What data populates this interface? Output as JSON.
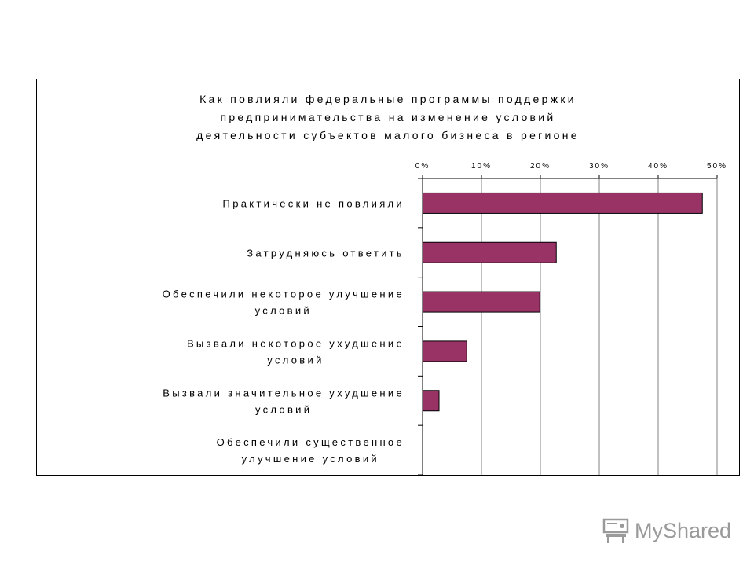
{
  "chart_data": {
    "type": "bar",
    "orientation": "horizontal",
    "title_lines": [
      "Как повлияли федеральные программы поддержки",
      "предпринимательства на изменение условий",
      "деятельности субъектов малого бизнеса в регионе"
    ],
    "categories": [
      [
        "Практически не повлияли"
      ],
      [
        "Затрудняюсь ответить"
      ],
      [
        "Обеспечили некоторое улучшение",
        "условий"
      ],
      [
        "Вызвали некоторое ухудшение",
        "условий"
      ],
      [
        "Вызвали значительное ухудшение",
        "условий"
      ],
      [
        "Обеспечили существенное",
        "улучшение условий"
      ]
    ],
    "values": [
      47.5,
      22.7,
      19.9,
      7.5,
      2.8,
      0
    ],
    "unit": "%",
    "xlim": [
      0,
      50
    ],
    "x_ticks": [
      "0%",
      "10%",
      "20%",
      "30%",
      "40%",
      "50%"
    ],
    "x_axis_position": "top",
    "grid": true,
    "legend": "none",
    "bar_color": "#993366",
    "bar_border_color": "#000000",
    "gridline_color": "#808080"
  },
  "watermark": {
    "text": "MyShared",
    "icon": "teacher-desk-icon",
    "color": "#9a9a9a"
  }
}
